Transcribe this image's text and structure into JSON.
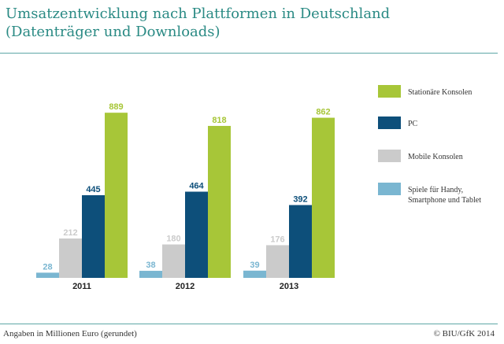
{
  "chart_data": {
    "type": "bar",
    "title_lines": [
      "Umsatzentwicklung nach Plattformen in Deutschland",
      "(Datenträger und Downloads)"
    ],
    "categories": [
      "2011",
      "2012",
      "2013"
    ],
    "series": [
      {
        "name": "Spiele für Handy, Smartphone und Tablet",
        "legend_lines": [
          "Spiele für Handy,",
          "Smartphone und Tablet"
        ],
        "color": "#7ab6d1",
        "values": [
          28,
          38,
          39
        ]
      },
      {
        "name": "Mobile Konsolen",
        "legend_lines": [
          "Mobile Konsolen"
        ],
        "color": "#cbcbcb",
        "values": [
          212,
          180,
          176
        ]
      },
      {
        "name": "PC",
        "legend_lines": [
          "PC"
        ],
        "color": "#0d4f7a",
        "values": [
          445,
          464,
          392
        ]
      },
      {
        "name": "Stationäre Konsolen",
        "legend_lines": [
          "Stationäre Konsolen"
        ],
        "color": "#a7c638",
        "values": [
          889,
          818,
          862
        ]
      }
    ],
    "legend_order": [
      3,
      2,
      1,
      0
    ],
    "legend_position": "right",
    "grid": false,
    "ylim": [
      0,
      1000
    ],
    "xlabel": "",
    "ylabel": "",
    "footnote": "Angaben in Millionen Euro (gerundet)",
    "source": "© BIU/GfK 2014"
  }
}
